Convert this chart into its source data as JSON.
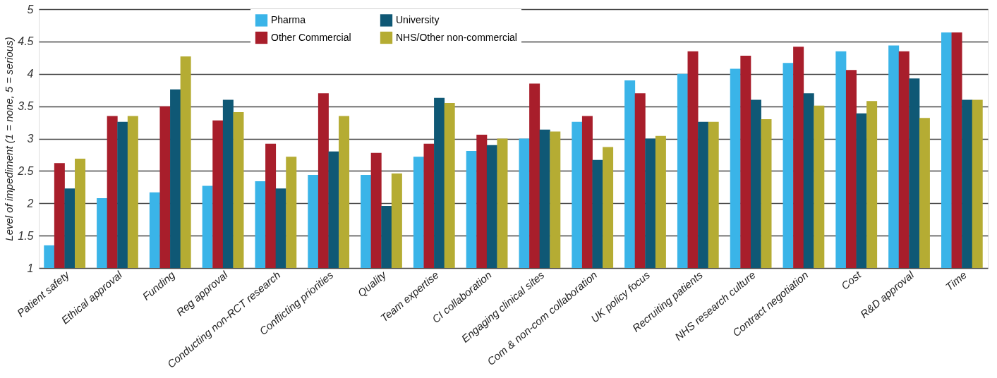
{
  "chart_data": {
    "type": "bar",
    "ylabel": "Level of impediment (1 = none, 5 = serious)",
    "categories": [
      "Patient safety",
      "Ethical approval",
      "Funding",
      "Reg approval",
      "Conducting non-RCT research",
      "Conflicting priorities",
      "Quality",
      "Team expertise",
      "CI collaboration",
      "Engaging clinical sites",
      "Com & non-com collaboration",
      "UK policy focus",
      "Recruiting patients",
      "NHS research culture",
      "Contract negotiation",
      "Cost",
      "R&D approval",
      "Time"
    ],
    "series": [
      {
        "name": "Pharma",
        "color": "#3ab4e8",
        "values": [
          1.35,
          2.08,
          2.17,
          2.27,
          2.34,
          2.44,
          2.44,
          2.72,
          2.81,
          3.0,
          3.26,
          3.9,
          4.0,
          4.08,
          4.17,
          4.35,
          4.44,
          4.64
        ]
      },
      {
        "name": "Other Commercial",
        "color": "#a81e2b",
        "values": [
          2.62,
          3.35,
          3.5,
          3.28,
          2.92,
          3.7,
          2.78,
          2.92,
          3.06,
          3.85,
          3.35,
          3.7,
          4.35,
          4.28,
          4.42,
          4.06,
          4.35,
          4.64
        ]
      },
      {
        "name": "University",
        "color": "#0f5875",
        "values": [
          2.23,
          3.26,
          3.76,
          3.6,
          2.23,
          2.8,
          1.96,
          3.63,
          2.9,
          3.14,
          2.67,
          3.0,
          3.26,
          3.6,
          3.7,
          3.39,
          3.93,
          3.6
        ]
      },
      {
        "name": "NHS/Other non-commercial",
        "color": "#b5ac33",
        "values": [
          2.69,
          3.35,
          4.27,
          3.41,
          2.72,
          3.35,
          2.46,
          3.55,
          3.0,
          3.11,
          2.87,
          3.04,
          3.26,
          3.3,
          3.51,
          3.58,
          3.32,
          3.6
        ]
      }
    ],
    "ylim": [
      1,
      5
    ],
    "yticks": [
      1,
      1.5,
      2,
      2.5,
      3,
      3.5,
      4,
      4.5,
      5
    ],
    "grid": "y",
    "legend": "top"
  }
}
